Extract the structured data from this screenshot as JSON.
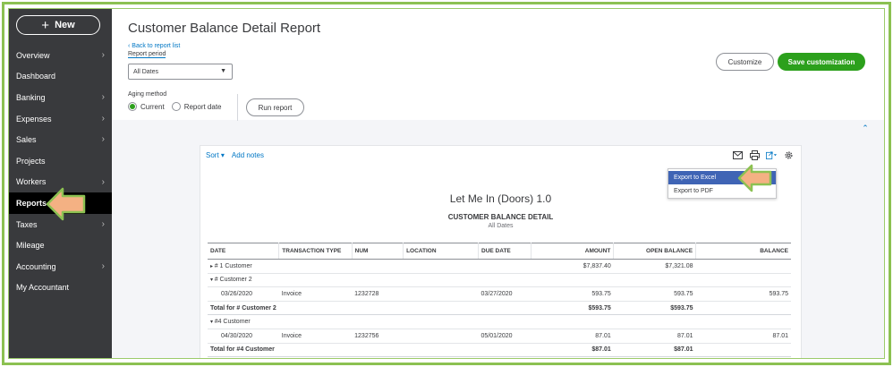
{
  "sidebar": {
    "new_label": "New",
    "items": [
      {
        "label": "Overview",
        "chevron": true
      },
      {
        "label": "Dashboard",
        "chevron": false
      },
      {
        "label": "Banking",
        "chevron": true
      },
      {
        "label": "Expenses",
        "chevron": true
      },
      {
        "label": "Sales",
        "chevron": true
      },
      {
        "label": "Projects",
        "chevron": false
      },
      {
        "label": "Workers",
        "chevron": true
      },
      {
        "label": "Reports",
        "chevron": false,
        "active": true
      },
      {
        "label": "Taxes",
        "chevron": true
      },
      {
        "label": "Mileage",
        "chevron": false
      },
      {
        "label": "Accounting",
        "chevron": true
      },
      {
        "label": "My Accountant",
        "chevron": false
      }
    ]
  },
  "header": {
    "title": "Customer Balance Detail Report",
    "back_link": "Back to report list",
    "report_period_label": "Report period",
    "period_value": "All Dates",
    "aging_method_label": "Aging method",
    "aging_options": [
      "Current",
      "Report date"
    ],
    "aging_selected": "Current",
    "run_report": "Run report",
    "customize": "Customize",
    "save_customization": "Save customization"
  },
  "report": {
    "toolbar": {
      "sort": "Sort",
      "add_notes": "Add notes"
    },
    "export_menu": [
      "Export to Excel",
      "Export to PDF"
    ],
    "company_name": "Let Me In (Doors) 1.0",
    "title": "CUSTOMER BALANCE DETAIL",
    "subtitle": "All Dates",
    "columns": [
      "DATE",
      "TRANSACTION TYPE",
      "NUM",
      "LOCATION",
      "DUE DATE",
      "AMOUNT",
      "OPEN BALANCE",
      "BALANCE"
    ],
    "rows": [
      {
        "kind": "group",
        "cells": [
          "# 1 Customer",
          "",
          "",
          "",
          "",
          "$7,837.40",
          "$7,321.08",
          ""
        ]
      },
      {
        "kind": "sub",
        "cells": [
          "# Customer 2",
          "",
          "",
          "",
          "",
          "",
          "",
          ""
        ]
      },
      {
        "kind": "detail",
        "cells": [
          "03/26/2020",
          "Invoice",
          "1232728",
          "",
          "03/27/2020",
          "593.75",
          "593.75",
          "593.75"
        ]
      },
      {
        "kind": "total",
        "cells": [
          "Total for # Customer 2",
          "",
          "",
          "",
          "",
          "$593.75",
          "$593.75",
          ""
        ]
      },
      {
        "kind": "sub",
        "cells": [
          "#4 Customer",
          "",
          "",
          "",
          "",
          "",
          "",
          ""
        ]
      },
      {
        "kind": "detail",
        "cells": [
          "04/30/2020",
          "Invoice",
          "1232756",
          "",
          "05/01/2020",
          "87.01",
          "87.01",
          "87.01"
        ]
      },
      {
        "kind": "total",
        "cells": [
          "Total for #4 Customer",
          "",
          "",
          "",
          "",
          "$87.01",
          "$87.01",
          ""
        ]
      }
    ]
  },
  "colors": {
    "frame_green": "#8cc152",
    "sidebar_bg": "#393a3d",
    "accent_green": "#2ca01c",
    "link_blue": "#0077c5",
    "menu_highlight": "#3f64b5",
    "callout_fill": "#f4b183"
  }
}
